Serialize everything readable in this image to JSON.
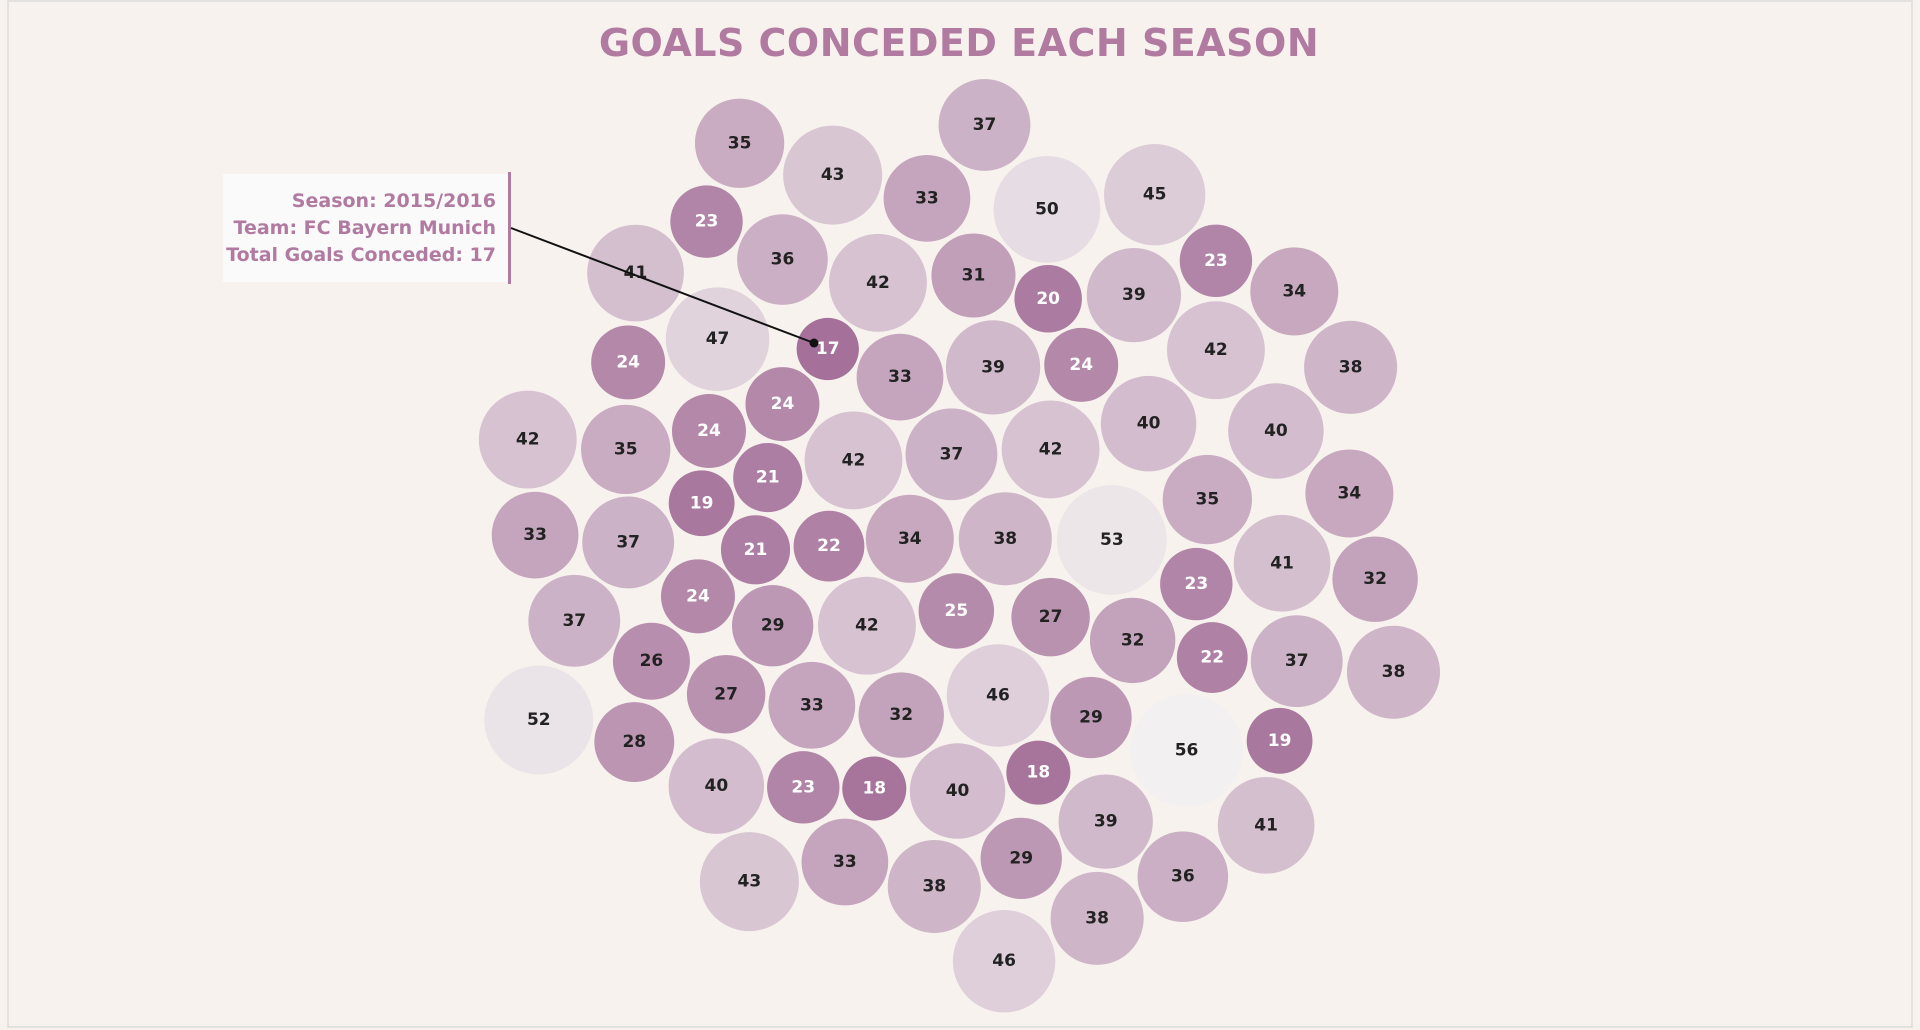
{
  "chart_data": {
    "type": "packed-bubble",
    "title": "GOALS CONCEDED EACH SEASON",
    "values": [
      35,
      43,
      37,
      33,
      50,
      45,
      23,
      36,
      41,
      42,
      31,
      20,
      39,
      23,
      34,
      47,
      17,
      24,
      33,
      39,
      24,
      42,
      38,
      24,
      42,
      35,
      24,
      21,
      42,
      37,
      42,
      40,
      40,
      19,
      33,
      37,
      21,
      22,
      34,
      38,
      53,
      35,
      34,
      41,
      23,
      32,
      37,
      24,
      29,
      42,
      25,
      27,
      32,
      26,
      22,
      37,
      38,
      52,
      28,
      27,
      33,
      32,
      46,
      29,
      56,
      19,
      40,
      23,
      18,
      40,
      18,
      39,
      41,
      43,
      33,
      38,
      29,
      36,
      38,
      46
    ],
    "color_range": [
      "#a5719a",
      "#f2f0f0"
    ],
    "annotation": [
      "Season: 2015/2016",
      "Team: FC Bayern Munich",
      "Total Goals Conceded: 17"
    ]
  }
}
